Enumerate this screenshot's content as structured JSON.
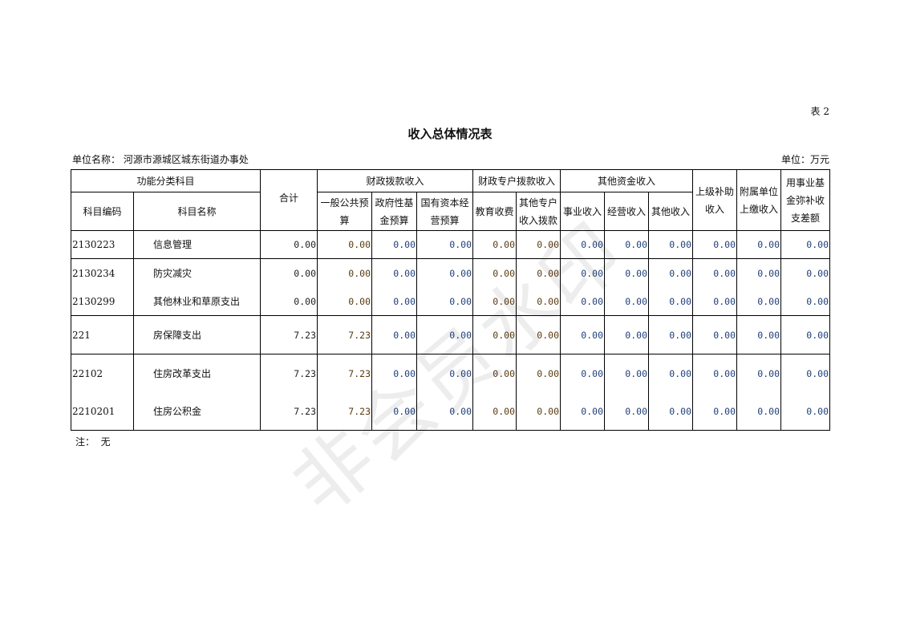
{
  "table_no": "表 2",
  "title": "收入总体情况表",
  "unit_name_label": "单位名称：",
  "unit_name": "河源市源城区城东街道办事处",
  "unit_measure": "单位：万元",
  "header": {
    "func_group": "功能分类科目",
    "code": "科目编码",
    "name": "科目名称",
    "total": "合计",
    "fiscal_group": "财政拨款收入",
    "general": "一般公共预算",
    "gov_fund": "政府性基金预算",
    "state_capital": "国有资本经营预算",
    "special_group": "财政专户拨款收入",
    "edu_fee": "教育收费",
    "other_special": "其他专户收入拨款",
    "other_group": "其他资金收入",
    "business": "事业收入",
    "operating": "经营收入",
    "other_income": "其他收入",
    "superior": "上级补助收入",
    "affiliated": "附属单位上缴收入",
    "fund_offset": "用事业基金弥补收支差额"
  },
  "rows": [
    {
      "code": "2130223",
      "name": "信息管理",
      "v": [
        "0.00",
        "0.00",
        "0.00",
        "0.00",
        "0.00",
        "0.00",
        "0.00",
        "0.00",
        "0.00",
        "0.00",
        "0.00",
        "0.00"
      ]
    },
    {
      "code": "2130234",
      "name": "防灾减灾",
      "v": [
        "0.00",
        "0.00",
        "0.00",
        "0.00",
        "0.00",
        "0.00",
        "0.00",
        "0.00",
        "0.00",
        "0.00",
        "0.00",
        "0.00"
      ]
    },
    {
      "code": "2130299",
      "name": "其他林业和草原支出",
      "v": [
        "0.00",
        "0.00",
        "0.00",
        "0.00",
        "0.00",
        "0.00",
        "0.00",
        "0.00",
        "0.00",
        "0.00",
        "0.00",
        "0.00"
      ]
    },
    {
      "code": "221",
      "name": "房保障支出",
      "v": [
        "7.23",
        "7.23",
        "0.00",
        "0.00",
        "0.00",
        "0.00",
        "0.00",
        "0.00",
        "0.00",
        "0.00",
        "0.00",
        "0.00"
      ]
    },
    {
      "code": "22102",
      "name": "住房改革支出",
      "v": [
        "7.23",
        "7.23",
        "0.00",
        "0.00",
        "0.00",
        "0.00",
        "0.00",
        "0.00",
        "0.00",
        "0.00",
        "0.00",
        "0.00"
      ]
    },
    {
      "code": "2210201",
      "name": "住房公积金",
      "v": [
        "7.23",
        "7.23",
        "0.00",
        "0.00",
        "0.00",
        "0.00",
        "0.00",
        "0.00",
        "0.00",
        "0.00",
        "0.00",
        "0.00"
      ]
    }
  ],
  "value_colors": [
    "#222222",
    "#5a3a10",
    "#1f3f7a",
    "#1f3f7a",
    "#5a3a10",
    "#5a3a10",
    "#1f3f7a",
    "#1f3f7a",
    "#1f3f7a",
    "#1f3f7a",
    "#1f3f7a",
    "#1f3f7a"
  ],
  "note_label": "注：",
  "note": "无",
  "watermark": "非会员水印"
}
